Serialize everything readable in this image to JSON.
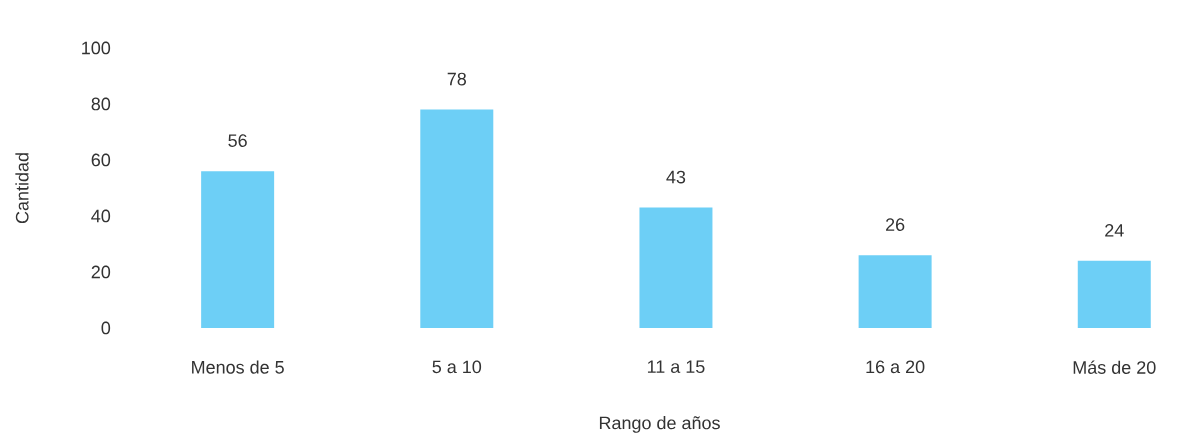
{
  "chart_data": {
    "type": "bar",
    "xlabel": "Rango de años",
    "ylabel": "Cantidad",
    "categories": [
      "Menos de 5",
      "5 a 10",
      "11 a 15",
      "16 a 20",
      "Más de 20"
    ],
    "values": [
      56,
      78,
      43,
      26,
      24
    ],
    "color": "#6dcff6",
    "ylim": [
      0,
      100
    ],
    "yticks": [
      0,
      20,
      40,
      60,
      80,
      100
    ],
    "grid": false,
    "data_labels": true
  }
}
